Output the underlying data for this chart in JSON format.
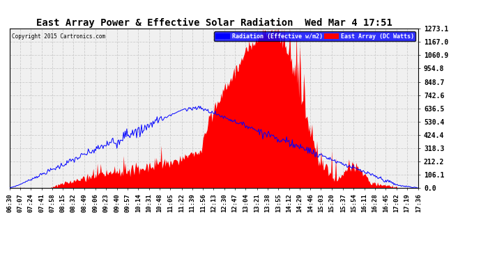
{
  "title": "East Array Power & Effective Solar Radiation  Wed Mar 4 17:51",
  "copyright": "Copyright 2015 Cartronics.com",
  "legend_labels": [
    "Radiation (Effective w/m2)",
    "East Array (DC Watts)"
  ],
  "background_color": "#ffffff",
  "plot_bg_color": "#f0f0f0",
  "grid_color": "#cccccc",
  "ymax": 1273.1,
  "ymin": 0.0,
  "yticks": [
    0.0,
    106.1,
    212.2,
    318.3,
    424.4,
    530.4,
    636.5,
    742.6,
    848.7,
    954.8,
    1060.9,
    1167.0,
    1273.1
  ],
  "time_labels": [
    "06:30",
    "07:07",
    "07:24",
    "07:41",
    "07:58",
    "08:15",
    "08:32",
    "08:49",
    "09:06",
    "09:23",
    "09:40",
    "09:57",
    "10:14",
    "10:31",
    "10:48",
    "11:05",
    "11:22",
    "11:39",
    "11:56",
    "12:13",
    "12:30",
    "12:47",
    "13:04",
    "13:21",
    "13:38",
    "13:55",
    "14:12",
    "14:29",
    "14:46",
    "15:03",
    "15:20",
    "15:37",
    "15:54",
    "16:11",
    "16:28",
    "16:45",
    "17:02",
    "17:19",
    "17:36"
  ]
}
